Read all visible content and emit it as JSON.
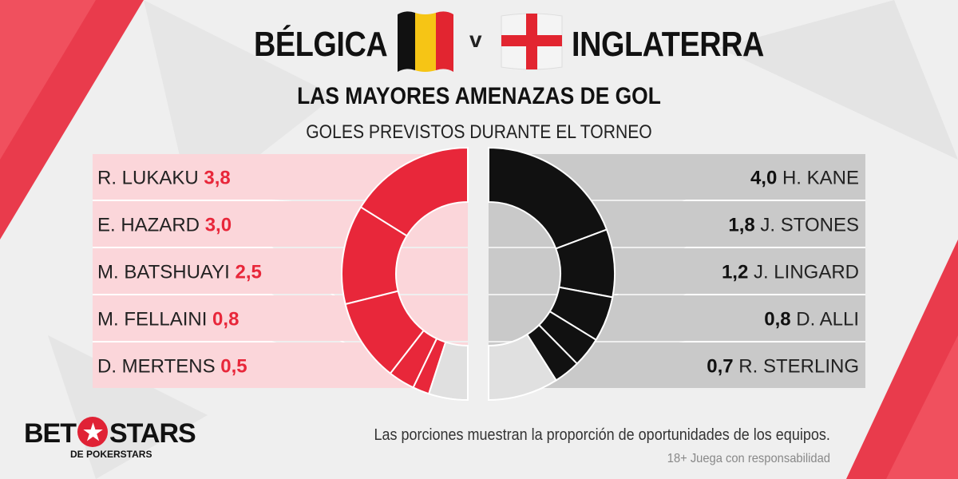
{
  "header": {
    "team_left": "BÉLGICA",
    "versus": "v",
    "team_right": "INGLATERRA",
    "subtitle": "LAS MAYORES AMENAZAS DE GOL",
    "caption": "GOLES PREVISTOS DURANTE EL TORNEO"
  },
  "colors": {
    "belgium_accent": "#e8273a",
    "belgium_panel": "#fbd6da",
    "england_accent": "#111111",
    "england_panel": "#c9c9c9",
    "remainder": "#e0e0e0"
  },
  "chart_data": [
    {
      "type": "pie",
      "variant": "half-donut",
      "side": "left",
      "categories": [
        "R. LUKAKU",
        "E. HAZARD",
        "M. BATSHUAYI",
        "M. FELLAINI",
        "D. MERTENS"
      ],
      "values": [
        3.8,
        3.0,
        2.5,
        0.8,
        0.5
      ],
      "value_labels": [
        "3,8",
        "3,0",
        "2,5",
        "0,8",
        "0,5"
      ],
      "remainder_share": 0.1,
      "legend": "left"
    },
    {
      "type": "pie",
      "variant": "half-donut",
      "side": "right",
      "categories": [
        "H. KANE",
        "J. STONES",
        "J. LINGARD",
        "D. ALLI",
        "R. STERLING"
      ],
      "values": [
        4.0,
        1.8,
        1.2,
        0.8,
        0.7
      ],
      "value_labels": [
        "4,0",
        "1,8",
        "1,2",
        "0,8",
        "0,7"
      ],
      "remainder_share": 0.18,
      "legend": "right"
    }
  ],
  "footer": {
    "note": "Las porciones muestran la proporción de oportunidades de los equipos.",
    "disclaimer": "18+ Juega con responsabilidad",
    "logo_left": "BET",
    "logo_star": "★",
    "logo_right": "STARS",
    "logo_sub": "DE POKERSTARS"
  }
}
